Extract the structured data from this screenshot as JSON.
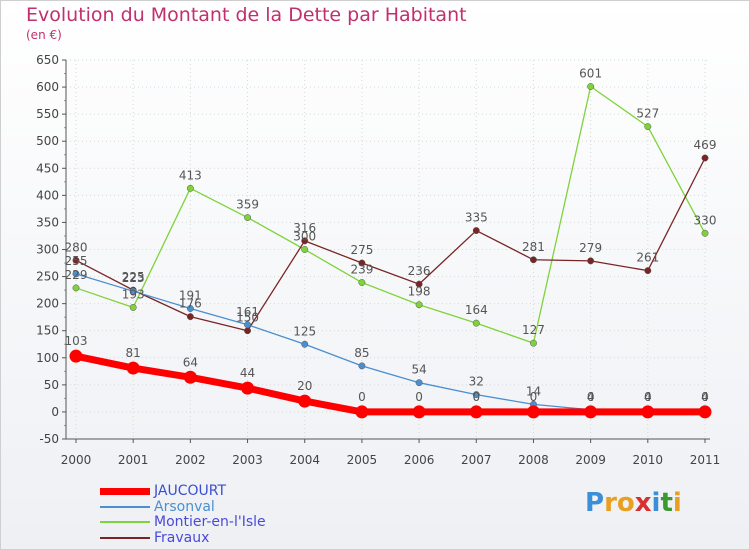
{
  "title": "Evolution du Montant de la Dette par Habitant",
  "unit": "(en €)",
  "logo": {
    "text": "Proxiti",
    "letters": [
      "P",
      "r",
      "o",
      "x",
      "i",
      "t",
      "i"
    ],
    "colors": [
      "#3a8fd8",
      "#e8a020",
      "#e8a020",
      "#d83030",
      "#3a8fd8",
      "#3a9a30",
      "#e8a020"
    ]
  },
  "chart_data": {
    "type": "line",
    "x": [
      "2000",
      "2001",
      "2002",
      "2003",
      "2004",
      "2005",
      "2006",
      "2007",
      "2008",
      "2009",
      "2010",
      "2011"
    ],
    "ylim": [
      -50,
      650
    ],
    "yticks": [
      -50,
      0,
      50,
      100,
      150,
      200,
      250,
      300,
      350,
      400,
      450,
      500,
      550,
      600,
      650
    ],
    "grid": true,
    "legend_position": "bottom-left",
    "series": [
      {
        "name": "JAUCOURT",
        "color": "#ff0000",
        "values": [
          103,
          81,
          64,
          44,
          20,
          0,
          0,
          0,
          0,
          0,
          0,
          0
        ],
        "labels": [
          "103",
          "81",
          "64",
          "44",
          "20",
          "0",
          "0",
          "0",
          "0",
          "0",
          "0",
          "0"
        ]
      },
      {
        "name": "Arsonval",
        "color": "#4a8fd0",
        "values": [
          255,
          223,
          191,
          161,
          125,
          85,
          54,
          32,
          14,
          4,
          4,
          4
        ],
        "labels": [
          "255",
          "223",
          "191",
          "161",
          "125",
          "85",
          "54",
          "32",
          "14",
          "4",
          "4",
          "4"
        ]
      },
      {
        "name": "Montier-en-l'Isle",
        "color": "#7fd33a",
        "values": [
          229,
          193,
          413,
          359,
          300,
          239,
          198,
          164,
          127,
          601,
          527,
          330
        ],
        "labels": [
          "229",
          "193",
          "413",
          "359",
          "300",
          "239",
          "198",
          "164",
          "127",
          "601",
          "527",
          "330"
        ]
      },
      {
        "name": "Fravaux",
        "color": "#7a2525",
        "values": [
          280,
          225,
          176,
          150,
          316,
          275,
          236,
          335,
          281,
          279,
          261,
          469
        ],
        "labels": [
          "280",
          "225",
          "176",
          "150",
          "316",
          "275",
          "236",
          "335",
          "281",
          "279",
          "261",
          "469"
        ]
      }
    ]
  }
}
